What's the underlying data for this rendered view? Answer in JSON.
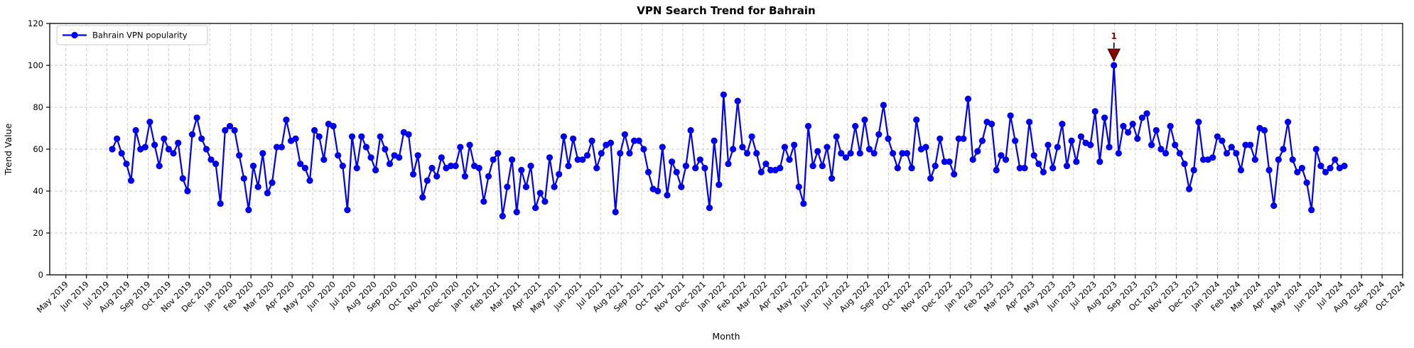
{
  "chart_data": {
    "type": "line",
    "title": "VPN Search Trend for Bahrain",
    "xlabel": "Month",
    "ylabel": "Trend Value",
    "ylim": [
      0,
      120
    ],
    "y_ticks": [
      0,
      20,
      40,
      60,
      80,
      100,
      120
    ],
    "grid": true,
    "legend_position": "upper left",
    "x_tick_labels": [
      "May 2019",
      "Jun 2019",
      "Jul 2019",
      "Aug 2019",
      "Sep 2019",
      "Oct 2019",
      "Nov 2019",
      "Dec 2019",
      "Jan 2020",
      "Feb 2020",
      "Mar 2020",
      "Apr 2020",
      "May 2020",
      "Jun 2020",
      "Jul 2020",
      "Aug 2020",
      "Sep 2020",
      "Oct 2020",
      "Nov 2020",
      "Dec 2020",
      "Jan 2021",
      "Feb 2021",
      "Mar 2021",
      "Apr 2021",
      "May 2021",
      "Jun 2021",
      "Jul 2021",
      "Aug 2021",
      "Sep 2021",
      "Oct 2021",
      "Nov 2021",
      "Dec 2021",
      "Jan 2022",
      "Feb 2022",
      "Mar 2022",
      "Apr 2022",
      "May 2022",
      "Jun 2022",
      "Jul 2022",
      "Aug 2022",
      "Sep 2022",
      "Oct 2022",
      "Nov 2022",
      "Dec 2022",
      "Jan 2023",
      "Feb 2023",
      "Mar 2023",
      "Apr 2023",
      "May 2023",
      "Jun 2023",
      "Jul 2023",
      "Aug 2023",
      "Sep 2023",
      "Oct 2023",
      "Nov 2023",
      "Dec 2023",
      "Jan 2024",
      "Feb 2024",
      "Mar 2024",
      "Apr 2024",
      "May 2024",
      "Jun 2024",
      "Jul 2024",
      "Aug 2024",
      "Sep 2024",
      "Oct 2024"
    ],
    "x_interval": "weekly",
    "x_start_estimate": "2019-07-07",
    "series": [
      {
        "name": "Bahrain VPN popularity",
        "values": [
          60,
          65,
          58,
          53,
          45,
          69,
          60,
          61,
          73,
          62,
          52,
          65,
          60,
          58,
          63,
          46,
          40,
          67,
          75,
          65,
          60,
          55,
          53,
          34,
          69,
          71,
          69,
          57,
          46,
          31,
          52,
          42,
          58,
          39,
          44,
          61,
          61,
          74,
          64,
          65,
          53,
          51,
          45,
          69,
          66,
          55,
          72,
          71,
          57,
          52,
          31,
          66,
          51,
          66,
          61,
          56,
          50,
          66,
          60,
          53,
          57,
          56,
          68,
          67,
          48,
          57,
          37,
          45,
          51,
          47,
          56,
          51,
          52,
          52,
          61,
          47,
          62,
          52,
          51,
          35,
          47,
          55,
          58,
          28,
          42,
          55,
          30,
          50,
          42,
          52,
          32,
          39,
          35,
          56,
          42,
          48,
          66,
          52,
          65,
          55,
          55,
          57,
          64,
          51,
          58,
          62,
          63,
          30,
          58,
          67,
          58,
          64,
          64,
          60,
          49,
          41,
          40,
          61,
          38,
          54,
          49,
          42,
          52,
          69,
          51,
          55,
          51,
          32,
          64,
          43,
          86,
          53,
          60,
          83,
          61,
          58,
          66,
          58,
          49,
          53,
          50,
          50,
          51,
          61,
          55,
          62,
          42,
          34,
          71,
          52,
          59,
          52,
          61,
          46,
          66,
          58,
          56,
          58,
          71,
          58,
          74,
          60,
          58,
          67,
          81,
          65,
          58,
          51,
          58,
          58,
          51,
          74,
          60,
          61,
          46,
          52,
          65,
          54,
          54,
          48,
          65,
          65,
          84,
          55,
          59,
          64,
          73,
          72,
          50,
          57,
          55,
          76,
          64,
          51,
          51,
          73,
          57,
          53,
          49,
          62,
          51,
          61,
          72,
          52,
          64,
          54,
          66,
          63,
          62,
          78,
          54,
          75,
          61,
          100,
          58,
          71,
          68,
          72,
          65,
          75,
          77,
          62,
          69,
          60,
          58,
          71,
          62,
          58,
          53,
          41,
          50,
          73,
          55,
          55,
          56,
          66,
          64,
          58,
          61,
          58,
          50,
          62,
          62,
          55,
          70,
          69,
          50,
          33,
          55,
          60,
          73,
          55,
          49,
          51,
          44,
          31,
          60,
          52,
          49,
          51,
          55,
          51,
          52
        ]
      }
    ],
    "annotations": [
      {
        "text": "1",
        "series_point_index": 213,
        "value": 100,
        "marker": "triangle-down",
        "color": "#8b0000"
      }
    ],
    "colors": {
      "line": "#0000ee",
      "marker": "#0000ee",
      "annotation": "#8b0000",
      "grid": "#c9c9c9",
      "spine": "#000000",
      "background": "#ffffff"
    }
  }
}
